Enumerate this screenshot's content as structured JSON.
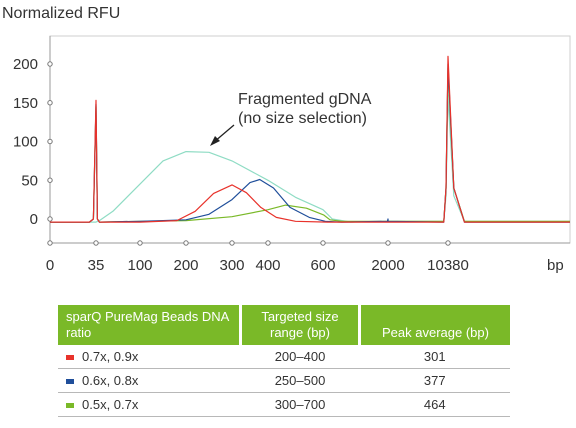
{
  "chart_data": {
    "type": "line",
    "title": "Normalized RFU",
    "xlabel": "bp",
    "y_ticks": [
      "0",
      "50",
      "100",
      "150",
      "200"
    ],
    "x_ticks": [
      "0",
      "35",
      "100",
      "200",
      "300",
      "400",
      "600",
      "2000",
      "10380"
    ],
    "ylim": [
      -30,
      230
    ],
    "annotation": {
      "line1": "Fragmented gDNA",
      "line2": "(no size selection)"
    },
    "series": [
      {
        "color": "#e8322b",
        "points": [
          [
            0,
            -4
          ],
          [
            30,
            -4
          ],
          [
            33,
            0
          ],
          [
            35,
            153
          ],
          [
            37,
            0
          ],
          [
            40,
            -4
          ],
          [
            100,
            -4
          ],
          [
            180,
            -2
          ],
          [
            220,
            10
          ],
          [
            260,
            33
          ],
          [
            300,
            44
          ],
          [
            340,
            34
          ],
          [
            380,
            15
          ],
          [
            430,
            2
          ],
          [
            500,
            -3
          ],
          [
            700,
            -4
          ],
          [
            1000,
            -4
          ],
          [
            9800,
            -4
          ],
          [
            10100,
            40
          ],
          [
            10380,
            210
          ],
          [
            10600,
            40
          ],
          [
            11000,
            -4
          ],
          [
            15000,
            -4
          ]
        ]
      },
      {
        "color": "#1f4e9a",
        "points": [
          [
            0,
            -4
          ],
          [
            30,
            -4
          ],
          [
            33,
            0
          ],
          [
            35,
            148
          ],
          [
            37,
            0
          ],
          [
            40,
            -4
          ],
          [
            100,
            -3
          ],
          [
            200,
            -1
          ],
          [
            250,
            6
          ],
          [
            300,
            25
          ],
          [
            350,
            47
          ],
          [
            377,
            51
          ],
          [
            420,
            40
          ],
          [
            480,
            15
          ],
          [
            550,
            2
          ],
          [
            650,
            -3
          ],
          [
            1000,
            -4
          ],
          [
            1990,
            -3
          ],
          [
            2000,
            0
          ],
          [
            2010,
            -3
          ],
          [
            9800,
            -4
          ],
          [
            10100,
            40
          ],
          [
            10380,
            200
          ],
          [
            10600,
            40
          ],
          [
            11000,
            -4
          ],
          [
            15000,
            -4
          ]
        ]
      },
      {
        "color": "#7ab928",
        "points": [
          [
            0,
            -4
          ],
          [
            30,
            -4
          ],
          [
            33,
            0
          ],
          [
            35,
            145
          ],
          [
            37,
            0
          ],
          [
            40,
            -4
          ],
          [
            100,
            -3
          ],
          [
            200,
            -2
          ],
          [
            300,
            3
          ],
          [
            400,
            12
          ],
          [
            464,
            18
          ],
          [
            540,
            14
          ],
          [
            620,
            5
          ],
          [
            750,
            -1
          ],
          [
            1000,
            -3
          ],
          [
            2000,
            -3
          ],
          [
            9800,
            -3
          ],
          [
            10100,
            40
          ],
          [
            10380,
            195
          ],
          [
            10600,
            40
          ],
          [
            11000,
            -3
          ],
          [
            15000,
            -3
          ]
        ]
      },
      {
        "color": "#8fdcc4",
        "points": [
          [
            0,
            -4
          ],
          [
            30,
            -4
          ],
          [
            35,
            -4
          ],
          [
            40,
            -2
          ],
          [
            60,
            10
          ],
          [
            100,
            45
          ],
          [
            150,
            75
          ],
          [
            200,
            87
          ],
          [
            250,
            86
          ],
          [
            300,
            75
          ],
          [
            400,
            50
          ],
          [
            500,
            28
          ],
          [
            600,
            12
          ],
          [
            800,
            0
          ],
          [
            1200,
            -4
          ],
          [
            2000,
            -3
          ],
          [
            9800,
            -3
          ],
          [
            10100,
            30
          ],
          [
            10380,
            160
          ],
          [
            10600,
            30
          ],
          [
            11000,
            -3
          ],
          [
            15000,
            -3
          ]
        ]
      }
    ]
  },
  "table": {
    "headers": [
      "sparQ PureMag Beads DNA ratio",
      "Targeted size range (bp)",
      "Peak average (bp)"
    ],
    "rows": [
      {
        "color": "#e8322b",
        "ratio": "0.7x, 0.9x",
        "range": "200–400",
        "peak": "301"
      },
      {
        "color": "#1f4e9a",
        "ratio": "0.6x, 0.8x",
        "range": "250–500",
        "peak": "377"
      },
      {
        "color": "#7ab928",
        "ratio": "0.5x, 0.7x",
        "range": "300–700",
        "peak": "464"
      }
    ]
  }
}
